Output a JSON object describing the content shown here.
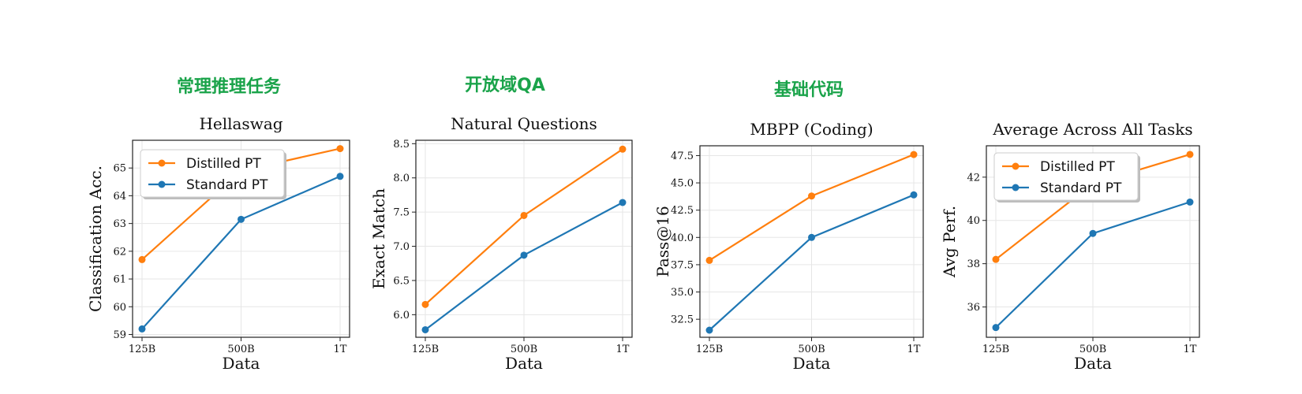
{
  "annotations": [
    "常理推理任务",
    "开放域QA",
    "基础代码"
  ],
  "colors": {
    "distilled": "#ff7f0e",
    "standard": "#1f77b4",
    "annotation": "#1aa34a"
  },
  "chart_data": [
    {
      "type": "line",
      "title": "Hellaswag",
      "xlabel": "Data",
      "ylabel": "Classification Acc.",
      "categories": [
        "125B",
        "500B",
        "1T"
      ],
      "ylim": [
        58.9,
        66.0
      ],
      "yticks": [
        "59",
        "60",
        "61",
        "62",
        "63",
        "64",
        "65"
      ],
      "grid": true,
      "legend": "upper-left",
      "series": [
        {
          "name": "Distilled PT",
          "values": [
            61.7,
            64.9,
            65.7
          ]
        },
        {
          "name": "Standard PT",
          "values": [
            59.2,
            63.15,
            64.7
          ]
        }
      ]
    },
    {
      "type": "line",
      "title": "Natural Questions",
      "xlabel": "Data",
      "ylabel": "Exact Match",
      "categories": [
        "125B",
        "500B",
        "1T"
      ],
      "ylim": [
        5.67,
        8.55
      ],
      "yticks": [
        "6.0",
        "6.5",
        "7.0",
        "7.5",
        "8.0",
        "8.5"
      ],
      "grid": true,
      "legend": "none",
      "series": [
        {
          "name": "Distilled PT",
          "values": [
            6.15,
            7.45,
            8.42
          ]
        },
        {
          "name": "Standard PT",
          "values": [
            5.78,
            6.87,
            7.64
          ]
        }
      ]
    },
    {
      "type": "line",
      "title": "MBPP (Coding)",
      "xlabel": "Data",
      "ylabel": "Pass@16",
      "categories": [
        "125B",
        "500B",
        "1T"
      ],
      "ylim": [
        30.85,
        48.4
      ],
      "yticks": [
        "32.5",
        "35.0",
        "37.5",
        "40.0",
        "42.5",
        "45.0",
        "47.5"
      ],
      "grid": true,
      "legend": "none",
      "series": [
        {
          "name": "Distilled PT",
          "values": [
            37.9,
            43.8,
            47.6
          ]
        },
        {
          "name": "Standard PT",
          "values": [
            31.5,
            40.0,
            43.9
          ]
        }
      ]
    },
    {
      "type": "line",
      "title": "Average Across All Tasks",
      "xlabel": "Data",
      "ylabel": "Avg Perf.",
      "categories": [
        "125B",
        "500B",
        "1T"
      ],
      "ylim": [
        34.6,
        43.45
      ],
      "yticks": [
        "36",
        "38",
        "40",
        "42"
      ],
      "grid": true,
      "legend": "upper-left",
      "series": [
        {
          "name": "Distilled PT",
          "values": [
            38.2,
            41.7,
            43.05
          ]
        },
        {
          "name": "Standard PT",
          "values": [
            35.05,
            39.4,
            40.85
          ]
        }
      ]
    }
  ]
}
